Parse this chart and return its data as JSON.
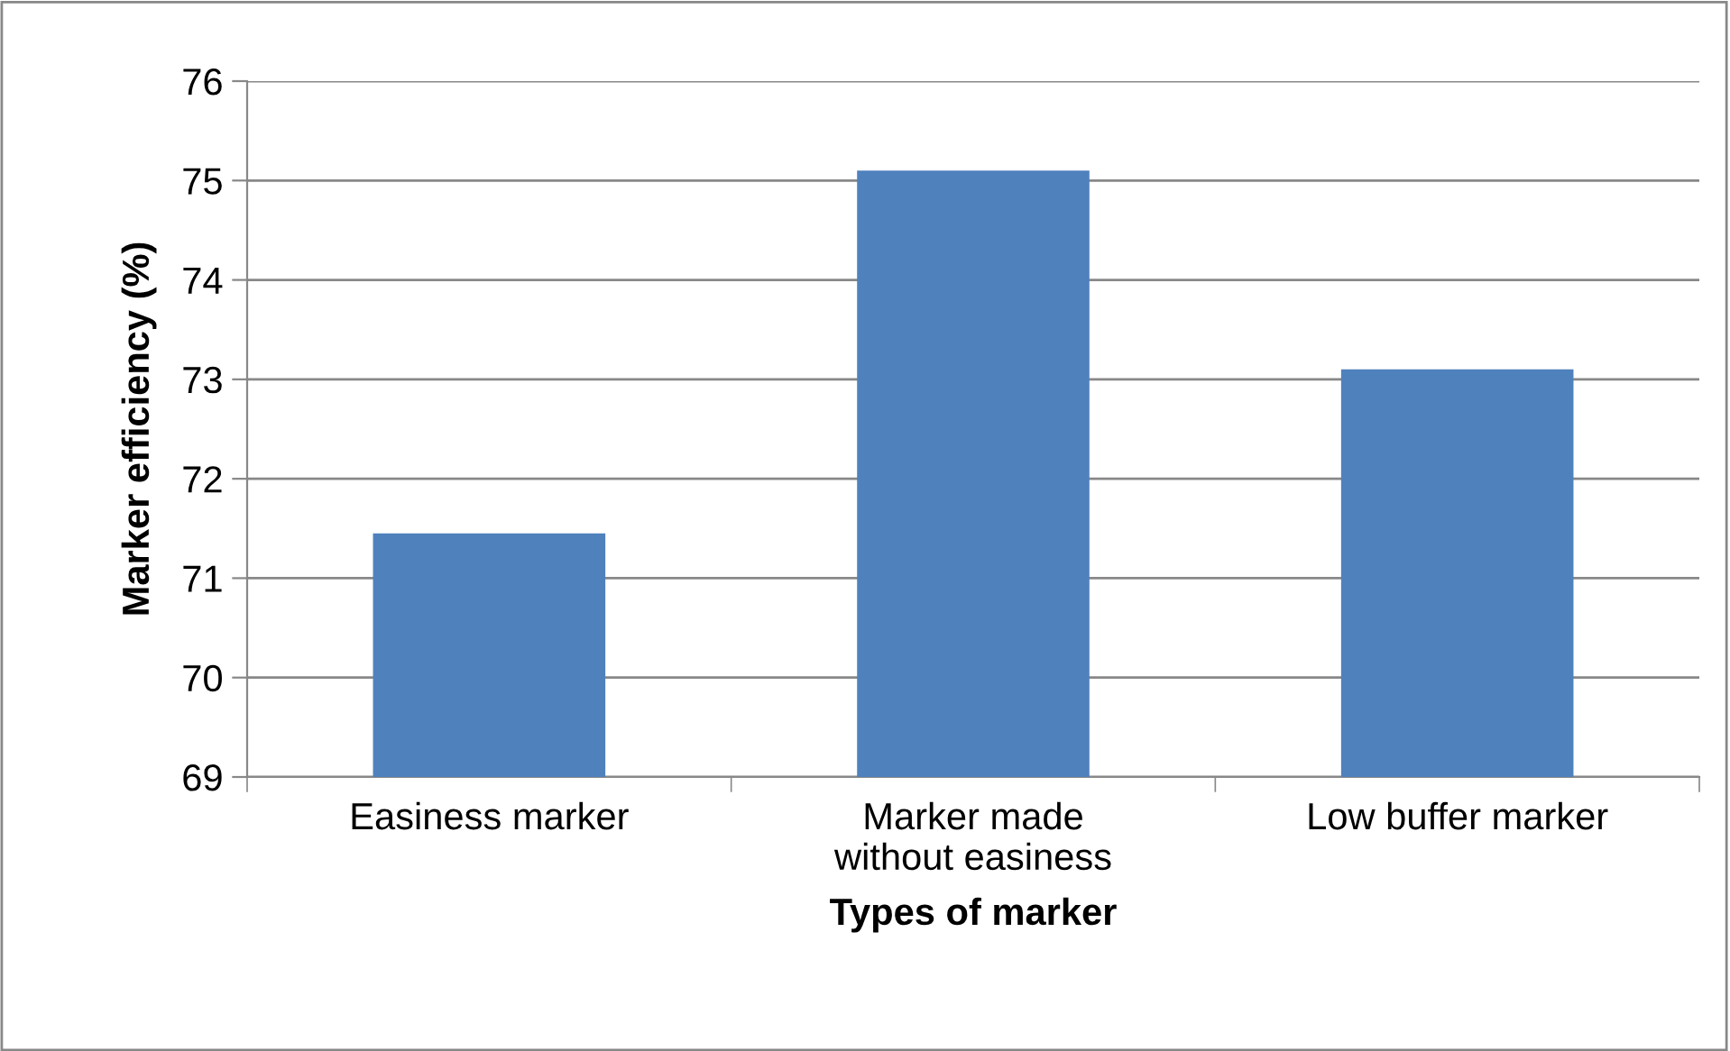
{
  "chart_data": {
    "type": "bar",
    "xlabel": "Types of marker",
    "ylabel": "Marker efficiency (%)",
    "categories": [
      "Easiness marker",
      "Marker made\nwithout easiness",
      "Low buffer marker"
    ],
    "values": [
      71.45,
      75.1,
      73.1
    ],
    "color": "#4f81bd",
    "ylim": [
      69,
      76
    ],
    "yticks": [
      69,
      70,
      71,
      72,
      73,
      74,
      75,
      76
    ],
    "grid": "y"
  }
}
